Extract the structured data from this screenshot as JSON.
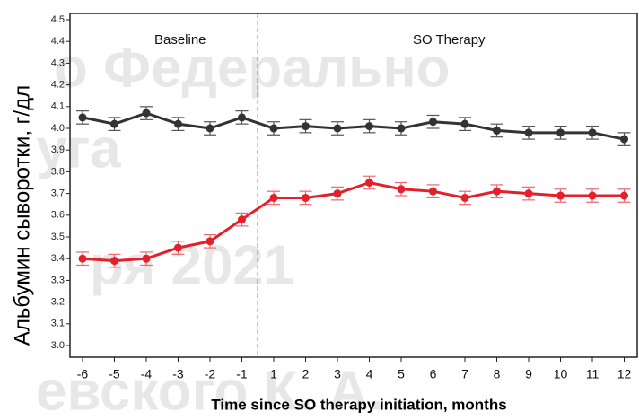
{
  "chart_data": {
    "type": "line",
    "ylabel": "Альбумин сыворотки, г/дл",
    "xlabel": "Time since SO therapy initiation, months",
    "categories": [
      "-6",
      "-5",
      "-4",
      "-3",
      "-2",
      "-1",
      "1",
      "2",
      "3",
      "4",
      "5",
      "6",
      "7",
      "8",
      "9",
      "10",
      "11",
      "12"
    ],
    "phases": [
      {
        "name": "Baseline",
        "count": 6
      },
      {
        "name": "SO Therapy",
        "count": 12
      }
    ],
    "series": [
      {
        "color": "#333333",
        "values": [
          4.05,
          4.02,
          4.07,
          4.02,
          4.0,
          4.05,
          4.0,
          4.01,
          4.0,
          4.01,
          4.0,
          4.03,
          4.02,
          3.99,
          3.98,
          3.98,
          3.98,
          3.95
        ],
        "errors": [
          0.03,
          0.03,
          0.03,
          0.03,
          0.03,
          0.03,
          0.03,
          0.03,
          0.03,
          0.03,
          0.03,
          0.03,
          0.03,
          0.03,
          0.03,
          0.03,
          0.03,
          0.03
        ]
      },
      {
        "color": "#e3202c",
        "values": [
          3.4,
          3.39,
          3.4,
          3.45,
          3.48,
          3.58,
          3.68,
          3.68,
          3.7,
          3.75,
          3.72,
          3.71,
          3.68,
          3.71,
          3.7,
          3.69,
          3.69,
          3.69
        ],
        "errors": [
          0.03,
          0.03,
          0.03,
          0.03,
          0.03,
          0.03,
          0.03,
          0.03,
          0.03,
          0.03,
          0.03,
          0.03,
          0.03,
          0.03,
          0.03,
          0.03,
          0.03,
          0.03
        ]
      }
    ],
    "ylim": [
      3.0,
      4.5
    ],
    "yticks": [
      {
        "value": 3,
        "label": "3.0"
      },
      3.1,
      3.2,
      3.3,
      3.4,
      3.5,
      3.6,
      3.7,
      3.8,
      3.9,
      {
        "value": 4,
        "label": "4.0"
      },
      4.1,
      4.2,
      4.3,
      4.4,
      4.5
    ],
    "watermark": [
      "о Федерально",
      "уга",
      "ря 2021",
      "евского К. А."
    ]
  }
}
